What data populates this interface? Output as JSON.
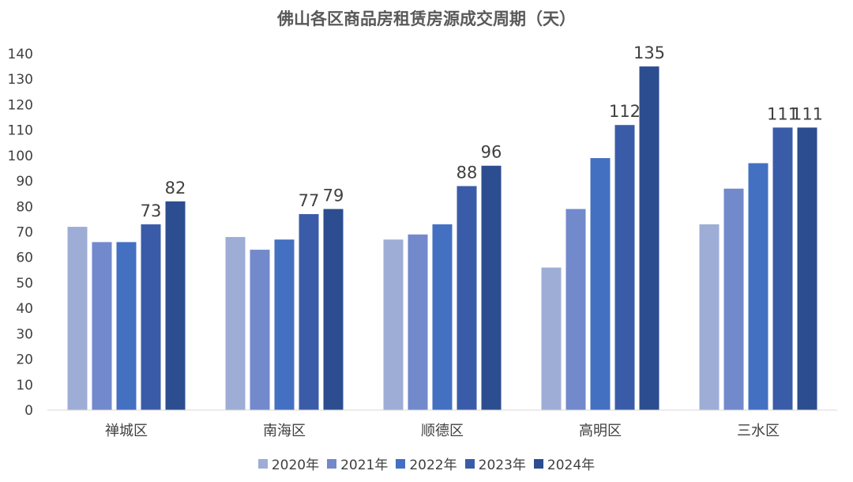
{
  "chart_data": {
    "type": "bar",
    "title": "佛山各区商品房租赁房源成交周期（天）",
    "categories": [
      "禅城区",
      "南海区",
      "顺德区",
      "高明区",
      "三水区"
    ],
    "series": [
      {
        "name": "2020年",
        "color": "#9eadd6",
        "values": [
          72,
          68,
          67,
          56,
          73
        ]
      },
      {
        "name": "2021年",
        "color": "#7289cc",
        "values": [
          66,
          63,
          69,
          79,
          87
        ]
      },
      {
        "name": "2022年",
        "color": "#4470c2",
        "values": [
          66,
          67,
          73,
          99,
          97
        ]
      },
      {
        "name": "2023年",
        "color": "#3a5ca8",
        "values": [
          73,
          77,
          88,
          112,
          111
        ]
      },
      {
        "name": "2024年",
        "color": "#2c4d8f",
        "values": [
          82,
          79,
          96,
          135,
          111
        ]
      }
    ],
    "data_labels": {
      "series_index": [
        3,
        4
      ]
    },
    "ylim": [
      0,
      140
    ],
    "ytick_step": 10,
    "grid": false,
    "legend": "bottom"
  }
}
